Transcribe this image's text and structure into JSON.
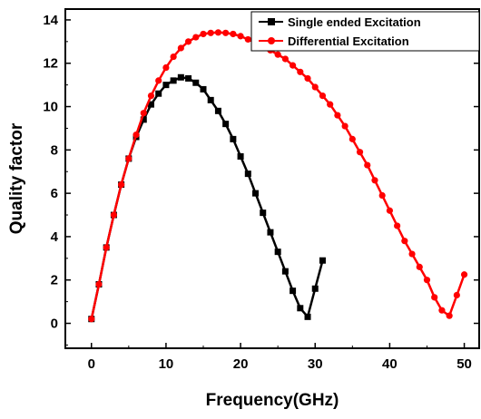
{
  "chart_data": {
    "type": "line",
    "title": "",
    "xlabel": "Frequency(GHz)",
    "ylabel": "Quality factor",
    "xlim": [
      -3.5,
      52
    ],
    "ylim": [
      -1.15,
      14.5
    ],
    "xticks": [
      0,
      10,
      20,
      30,
      40,
      50
    ],
    "yticks": [
      0,
      2,
      4,
      6,
      8,
      10,
      12,
      14
    ],
    "legend_position": "top-right",
    "series": [
      {
        "name": "Single ended Excitation",
        "color": "#000000",
        "marker": "square",
        "x": [
          0,
          1,
          2,
          3,
          4,
          5,
          6,
          7,
          8,
          9,
          10,
          11,
          12,
          13,
          14,
          15,
          16,
          17,
          18,
          19,
          20,
          21,
          22,
          23,
          24,
          25,
          26,
          27,
          28,
          29,
          30,
          31
        ],
        "y": [
          0.2,
          1.8,
          3.5,
          5.0,
          6.4,
          7.6,
          8.6,
          9.4,
          10.1,
          10.6,
          11.0,
          11.2,
          11.35,
          11.3,
          11.1,
          10.8,
          10.3,
          9.8,
          9.2,
          8.5,
          7.7,
          6.9,
          6.0,
          5.1,
          4.2,
          3.3,
          2.4,
          1.5,
          0.7,
          0.3,
          1.6,
          2.9
        ]
      },
      {
        "name": "Differential Excitation",
        "color": "#ff0000",
        "marker": "circle",
        "x": [
          0,
          1,
          2,
          3,
          4,
          5,
          6,
          7,
          8,
          9,
          10,
          11,
          12,
          13,
          14,
          15,
          16,
          17,
          18,
          19,
          20,
          21,
          22,
          23,
          24,
          25,
          26,
          27,
          28,
          29,
          30,
          31,
          32,
          33,
          34,
          35,
          36,
          37,
          38,
          39,
          40,
          41,
          42,
          43,
          44,
          45,
          46,
          47,
          48,
          49,
          50
        ],
        "y": [
          0.2,
          1.8,
          3.5,
          5.0,
          6.4,
          7.6,
          8.7,
          9.7,
          10.5,
          11.2,
          11.8,
          12.3,
          12.7,
          13.0,
          13.2,
          13.35,
          13.4,
          13.42,
          13.4,
          13.35,
          13.25,
          13.1,
          12.95,
          12.8,
          12.6,
          12.4,
          12.2,
          11.9,
          11.6,
          11.3,
          10.9,
          10.5,
          10.1,
          9.6,
          9.1,
          8.5,
          7.9,
          7.3,
          6.6,
          5.9,
          5.2,
          4.5,
          3.8,
          3.2,
          2.6,
          2.0,
          1.2,
          0.6,
          0.35,
          1.3,
          2.25
        ]
      }
    ]
  }
}
